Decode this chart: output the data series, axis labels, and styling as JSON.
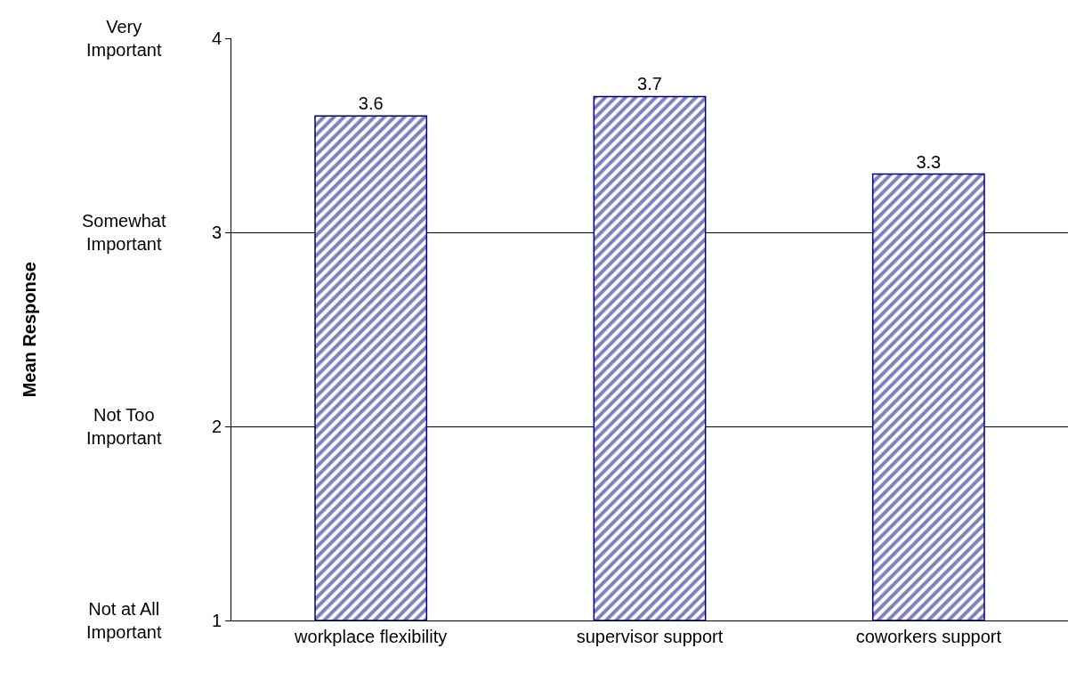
{
  "chart_data": {
    "type": "bar",
    "categories": [
      "workplace flexibility",
      "supervisor support",
      "coworkers support"
    ],
    "series": [
      {
        "color": "#000080",
        "values": [
          3.6,
          3.7,
          3.3
        ]
      }
    ],
    "data_labels": true,
    "ylim": [
      1,
      4
    ],
    "yticks": [
      1,
      2,
      3,
      4
    ],
    "grid": "y",
    "annotations": [
      "Not at All Important",
      "Not Too Important",
      "Somewhat Important",
      "Very Important",
      "Mean Response"
    ]
  }
}
